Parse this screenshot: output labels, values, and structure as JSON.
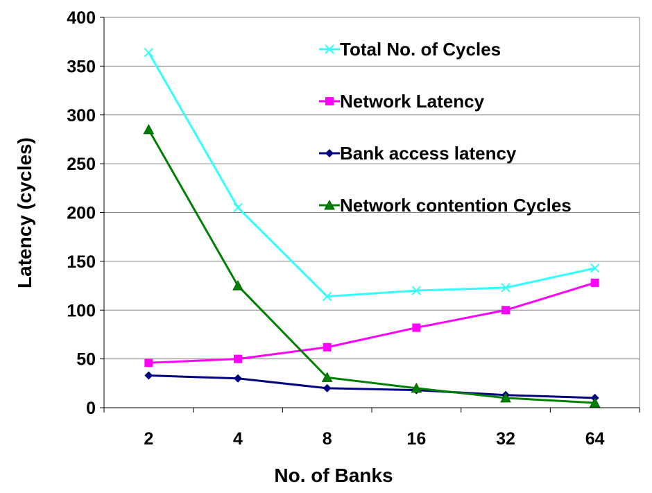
{
  "chart_data": {
    "type": "line",
    "title": "",
    "xlabel": "No. of Banks",
    "ylabel": "Latency (cycles)",
    "categories": [
      "2",
      "4",
      "8",
      "16",
      "32",
      "64"
    ],
    "ylim": [
      0,
      400
    ],
    "yticks": [
      0,
      50,
      100,
      150,
      200,
      250,
      300,
      350,
      400
    ],
    "grid": "horizontal",
    "legend": "top-right",
    "series": [
      {
        "name": "Total No. of Cycles",
        "color": "#33FFFF",
        "marker": "x",
        "values": [
          364,
          205,
          114,
          120,
          123,
          143
        ]
      },
      {
        "name": "Network Latency",
        "color": "#FF00FF",
        "marker": "square",
        "values": [
          46,
          50,
          62,
          82,
          100,
          128
        ]
      },
      {
        "name": "Bank access latency",
        "color": "#000080",
        "marker": "diamond",
        "values": [
          33,
          30,
          20,
          18,
          13,
          10
        ]
      },
      {
        "name": "Network contention Cycles",
        "color": "#008000",
        "marker": "triangle",
        "values": [
          285,
          125,
          31,
          20,
          10,
          5
        ]
      }
    ]
  }
}
